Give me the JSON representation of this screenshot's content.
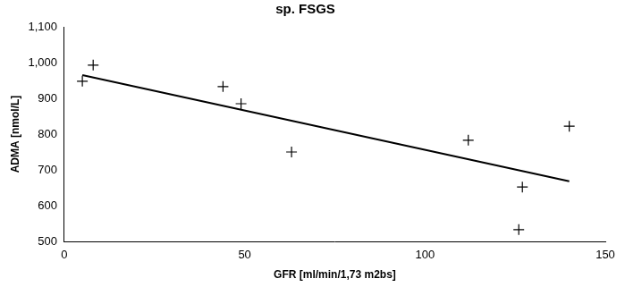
{
  "chart_data": {
    "type": "scatter",
    "title": "sp. FSGS",
    "x_label": "GFR [ml/min/1,73 m2bs]",
    "y_label": "ADMA [nmol/L]",
    "series": [
      {
        "type": "scatter",
        "color": "#000000",
        "marker": "cross",
        "x": [
          5,
          8,
          44,
          49,
          63,
          112,
          126,
          127,
          140
        ],
        "values": [
          948,
          993,
          933,
          885,
          750,
          783,
          533,
          652,
          822
        ]
      },
      {
        "type": "line",
        "color": "#000000",
        "line_style": "solid",
        "x": [
          5,
          140
        ],
        "values": [
          965,
          668
        ]
      }
    ],
    "xlim": [
      0,
      150
    ],
    "xticks": [
      0,
      50,
      100,
      150
    ],
    "ylim": [
      500,
      1100
    ],
    "yticks": [
      500,
      600,
      700,
      800,
      900,
      1000,
      1100
    ],
    "grid": false
  }
}
